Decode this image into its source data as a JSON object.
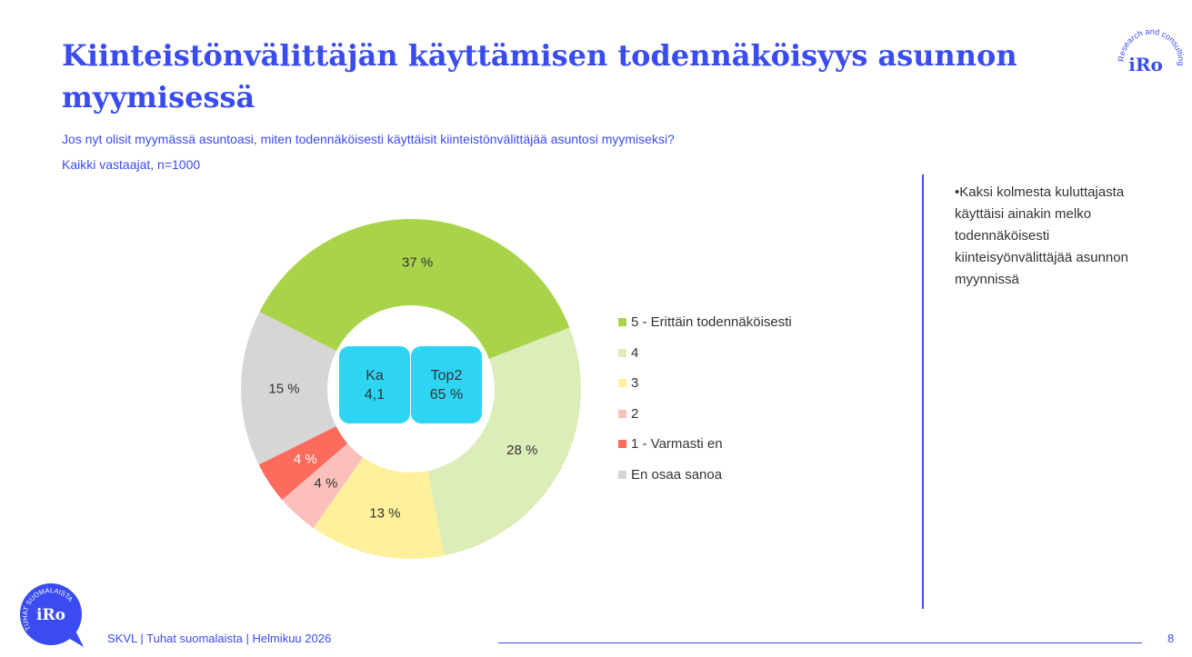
{
  "title": "Kiinteistönvälittäjän käyttämisen todennäköisyys asunnon myymisessä",
  "question": "Jos nyt olisit myymässä asuntoasi, miten todennäköisesti käyttäisit kiinteistönvälittäjää asuntosi myymiseksi?",
  "base": "Kaikki vastaajat, n=1000",
  "kpi": {
    "ka_label": "Ka",
    "ka_value": "4,1",
    "top2_label": "Top2",
    "top2_value": "65 %"
  },
  "note": "•Kaksi kolmesta kuluttajasta käyttäisi ainakin melko todennäköisesti kiinteisyönvälittäjää asunnon myynnissä",
  "footer": "SKVL | Tuhat suomalaista | Helmikuu 2026",
  "page_number": "8",
  "logo_top": {
    "brand": "iRo",
    "ring": "Research and consulting"
  },
  "logo_bottom": {
    "brand": "iRo",
    "ring": "TUHAT SUOMALAISTA"
  },
  "chart_data": {
    "type": "pie",
    "donut": true,
    "legend_position": "right",
    "categories": [
      "5 - Erittäin todennäköisesti",
      "4",
      "3",
      "2",
      "1 - Varmasti en",
      "En osaa sanoa"
    ],
    "values": [
      37,
      28,
      13,
      4,
      4,
      15
    ],
    "labels": [
      "37 %",
      "28 %",
      "13 %",
      "4 %",
      "4 %",
      "15 %"
    ],
    "colors": [
      "#a9d44a",
      "#dcedb9",
      "#fff09c",
      "#fcc0bc",
      "#fc6b5c",
      "#d6d6d6"
    ],
    "label_colors": [
      "#333",
      "#333",
      "#333",
      "#333",
      "#fff",
      "#333"
    ]
  }
}
